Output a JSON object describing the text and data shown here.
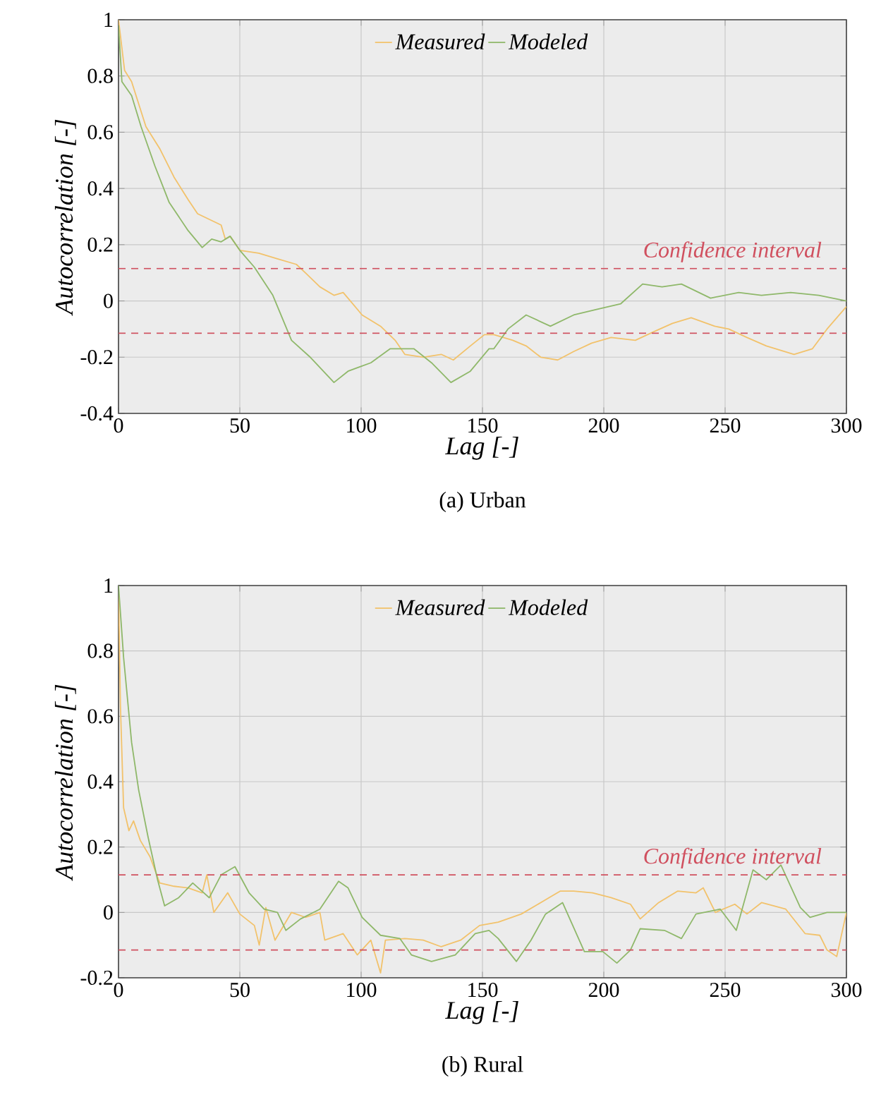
{
  "chart_data": [
    {
      "type": "line",
      "xlabel": "Lag [-]",
      "ylabel": "Autocorrelation [-]",
      "annotations": [
        "(a) Urban"
      ],
      "xlim": [
        0,
        300
      ],
      "ylim": [
        -0.4,
        1
      ],
      "xticks": [
        0,
        50,
        100,
        150,
        200,
        250,
        300
      ],
      "yticks": [
        -0.4,
        -0.2,
        0,
        0.2,
        0.4,
        0.6,
        0.8,
        1
      ],
      "grid": true,
      "legend": "top",
      "line_style": "solid",
      "ref_lines": [
        {
          "axis": "y",
          "value": 0.115,
          "label": "Confidence interval",
          "color": "#d0505f",
          "line_style": "dashed"
        },
        {
          "axis": "y",
          "value": -0.115,
          "color": "#d0505f",
          "line_style": "dashed"
        }
      ],
      "series": [
        {
          "name": "Measured",
          "color": "#f2c26b",
          "x": [
            0,
            2.5,
            5.4,
            11.3,
            17.1,
            22.9,
            28.7,
            32.6,
            42.3,
            44,
            46,
            50,
            57.8,
            65.5,
            73.3,
            77,
            83,
            88.8,
            92.6,
            100.4,
            108,
            114,
            118,
            125.6,
            133,
            138,
            145,
            150.8,
            154.7,
            162.5,
            168,
            174,
            181,
            187.6,
            195,
            203,
            213,
            220.5,
            228.3,
            236,
            245.7,
            251.5,
            259,
            267,
            278.4,
            286,
            292,
            300
          ],
          "values": [
            1,
            0.82,
            0.78,
            0.62,
            0.54,
            0.44,
            0.36,
            0.31,
            0.27,
            0.22,
            0.23,
            0.18,
            0.17,
            0.15,
            0.13,
            0.1,
            0.05,
            0.02,
            0.03,
            -0.05,
            -0.09,
            -0.14,
            -0.19,
            -0.2,
            -0.19,
            -0.21,
            -0.16,
            -0.12,
            -0.12,
            -0.14,
            -0.16,
            -0.2,
            -0.21,
            -0.18,
            -0.15,
            -0.13,
            -0.14,
            -0.11,
            -0.08,
            -0.06,
            -0.09,
            -0.1,
            -0.13,
            -0.16,
            -0.19,
            -0.17,
            -0.1,
            -0.02
          ]
        },
        {
          "name": "Modeled",
          "color": "#8fb86a",
          "x": [
            0,
            1.4,
            5.4,
            9.3,
            15,
            20.9,
            28.7,
            34.5,
            38.4,
            42.3,
            46,
            50,
            56,
            63.6,
            71.3,
            79,
            88.8,
            94.6,
            104,
            112,
            121.7,
            129,
            137,
            145,
            152.7,
            154.7,
            160.5,
            168,
            178,
            187.6,
            197,
            207,
            216,
            224,
            232,
            244,
            255.6,
            265,
            277,
            288.6,
            300
          ],
          "values": [
            0.98,
            0.78,
            0.73,
            0.62,
            0.48,
            0.35,
            0.25,
            0.19,
            0.22,
            0.21,
            0.23,
            0.18,
            0.12,
            0.02,
            -0.14,
            -0.2,
            -0.29,
            -0.25,
            -0.22,
            -0.17,
            -0.17,
            -0.22,
            -0.29,
            -0.25,
            -0.17,
            -0.17,
            -0.1,
            -0.05,
            -0.09,
            -0.05,
            -0.03,
            -0.01,
            0.06,
            0.05,
            0.06,
            0.01,
            0.03,
            0.02,
            0.03,
            0.02,
            0
          ]
        }
      ]
    },
    {
      "type": "line",
      "xlabel": "Lag [-]",
      "ylabel": "Autocorrelation [-]",
      "annotations": [
        "(b) Rural"
      ],
      "xlim": [
        0,
        300
      ],
      "ylim": [
        -0.2,
        1
      ],
      "xticks": [
        0,
        50,
        100,
        150,
        200,
        250,
        300
      ],
      "yticks": [
        -0.2,
        0,
        0.2,
        0.4,
        0.6,
        0.8,
        1
      ],
      "grid": true,
      "legend": "top",
      "line_style": "solid",
      "ref_lines": [
        {
          "axis": "y",
          "value": 0.115,
          "label": "Confidence interval",
          "color": "#d0505f",
          "line_style": "dashed"
        },
        {
          "axis": "y",
          "value": -0.115,
          "color": "#d0505f",
          "line_style": "dashed"
        }
      ],
      "series": [
        {
          "name": "Measured",
          "color": "#f2c26b",
          "x": [
            0,
            0.8,
            2.1,
            4.3,
            6.2,
            9,
            13,
            17,
            22.9,
            28.7,
            34.5,
            36.4,
            39.3,
            45,
            50,
            56,
            58,
            60.7,
            64.5,
            71.3,
            77,
            83,
            85,
            92.6,
            98.4,
            104,
            108,
            110,
            118,
            125.6,
            133,
            141,
            148.8,
            156.5,
            166,
            174,
            182,
            187.6,
            195.4,
            203,
            211,
            215,
            222.6,
            230.4,
            238,
            241,
            246,
            254,
            259,
            265,
            275,
            283,
            289,
            292,
            296,
            300
          ],
          "values": [
            1,
            0.63,
            0.32,
            0.25,
            0.28,
            0.22,
            0.17,
            0.09,
            0.08,
            0.075,
            0.06,
            0.115,
            0,
            0.06,
            -0.005,
            -0.04,
            -0.1,
            0.015,
            -0.085,
            0,
            -0.015,
            0,
            -0.085,
            -0.065,
            -0.13,
            -0.085,
            -0.185,
            -0.085,
            -0.08,
            -0.085,
            -0.105,
            -0.085,
            -0.04,
            -0.03,
            -0.005,
            0.03,
            0.065,
            0.065,
            0.06,
            0.045,
            0.025,
            -0.02,
            0.03,
            0.065,
            0.06,
            0.075,
            0,
            0.025,
            -0.005,
            0.03,
            0.01,
            -0.065,
            -0.07,
            -0.115,
            -0.135,
            0
          ]
        },
        {
          "name": "Modeled",
          "color": "#8fb86a",
          "x": [
            0,
            2.1,
            5.4,
            8.3,
            12.2,
            16.1,
            19,
            24.8,
            30.6,
            37.4,
            42.3,
            48,
            53.8,
            60,
            65.5,
            69,
            75,
            83,
            90.7,
            94.6,
            100.4,
            108,
            116,
            120.7,
            129,
            138.8,
            147,
            152.7,
            156.5,
            164,
            170,
            176,
            183,
            192,
            199.6,
            205.4,
            211,
            215,
            225,
            232,
            238,
            248,
            254.6,
            261.5,
            267,
            273,
            281,
            285,
            292,
            300
          ],
          "values": [
            1,
            0.78,
            0.52,
            0.375,
            0.23,
            0.1,
            0.02,
            0.045,
            0.09,
            0.045,
            0.115,
            0.14,
            0.06,
            0.01,
            0,
            -0.055,
            -0.02,
            0.01,
            0.095,
            0.075,
            -0.015,
            -0.07,
            -0.08,
            -0.13,
            -0.15,
            -0.13,
            -0.065,
            -0.055,
            -0.08,
            -0.15,
            -0.085,
            -0.005,
            0.03,
            -0.12,
            -0.12,
            -0.155,
            -0.115,
            -0.05,
            -0.055,
            -0.08,
            -0.005,
            0.01,
            -0.055,
            0.13,
            0.1,
            0.145,
            0.015,
            -0.015,
            0,
            0
          ]
        }
      ]
    }
  ]
}
